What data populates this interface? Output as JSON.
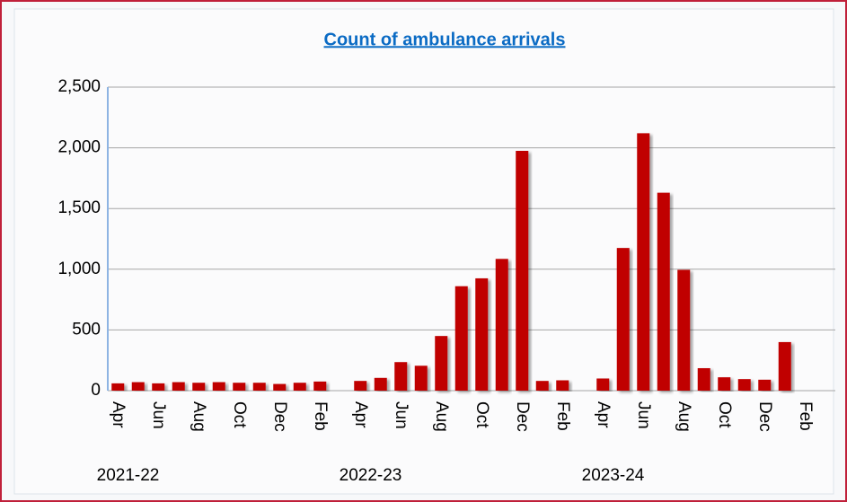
{
  "chart_data": {
    "type": "bar",
    "title": "Count of ambulance arrivals",
    "categories": [
      "Apr",
      null,
      "Jun",
      null,
      "Aug",
      null,
      "Oct",
      null,
      "Dec",
      null,
      "Feb",
      null,
      "Apr",
      null,
      "Jun",
      null,
      "Aug",
      null,
      "Oct",
      null,
      "Dec",
      null,
      "Feb",
      null,
      "Apr",
      null,
      "Jun",
      null,
      "Aug",
      null,
      "Oct",
      null,
      "Dec",
      null,
      "Feb",
      null
    ],
    "category_groups": [
      "2021-22",
      "2022-23",
      "2023-24"
    ],
    "values": [
      60,
      70,
      60,
      70,
      65,
      70,
      65,
      65,
      55,
      65,
      75,
      null,
      80,
      105,
      235,
      205,
      450,
      860,
      925,
      1085,
      1975,
      80,
      85,
      null,
      100,
      1175,
      2120,
      1630,
      995,
      185,
      110,
      95,
      90,
      400,
      null,
      null
    ],
    "color": "#c00000",
    "ylim": [
      0,
      2500
    ],
    "yticks": [
      0,
      500,
      {
        "value": 1000,
        "label": "1,000"
      },
      {
        "value": 1500,
        "label": "1,500"
      },
      {
        "value": 2000,
        "label": "2,000"
      },
      {
        "value": 2500,
        "label": "2,500"
      }
    ],
    "grid": true
  }
}
